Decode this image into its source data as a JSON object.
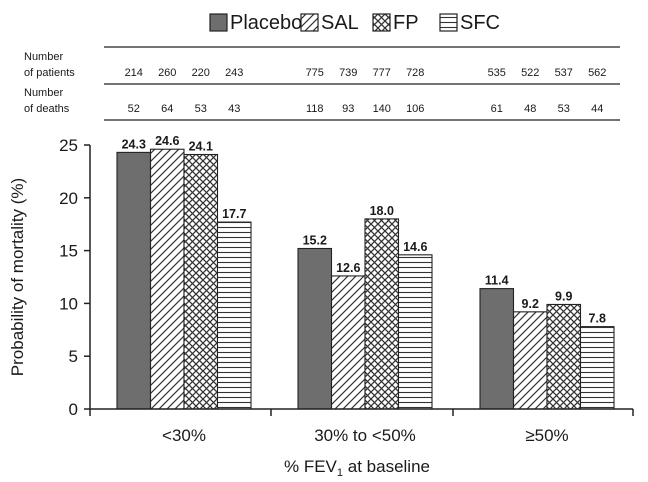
{
  "chart_data": {
    "type": "bar",
    "title": "",
    "xlabel": "% FEV",
    "xlabel_subscript": "1",
    "xlabel_suffix": " at baseline",
    "ylabel": "Probability of mortality (%)",
    "ylim": [
      0,
      25
    ],
    "yticks": [
      "0",
      "5",
      "10",
      "15",
      "20",
      "25"
    ],
    "categories": [
      "<30%",
      "30% to <50%",
      "≥50%"
    ],
    "series": [
      {
        "name": "Placebo",
        "values": [
          24.3,
          15.2,
          11.4
        ],
        "labels": [
          "24.3",
          "15.2",
          "11.4"
        ],
        "patients": [
          "214",
          "775",
          "535"
        ],
        "deaths": [
          "52",
          "118",
          "61"
        ]
      },
      {
        "name": "SAL",
        "values": [
          24.6,
          12.6,
          9.2
        ],
        "labels": [
          "24.6",
          "12.6",
          "9.2"
        ],
        "patients": [
          "260",
          "739",
          "522"
        ],
        "deaths": [
          "64",
          "93",
          "48"
        ]
      },
      {
        "name": "FP",
        "values": [
          24.1,
          18.0,
          9.9
        ],
        "labels": [
          "24.1",
          "18.0",
          "9.9"
        ],
        "patients": [
          "220",
          "777",
          "537"
        ],
        "deaths": [
          "53",
          "140",
          "53"
        ]
      },
      {
        "name": "SFC",
        "values": [
          17.7,
          14.6,
          7.8
        ],
        "labels": [
          "17.7",
          "14.6",
          "7.8"
        ],
        "patients": [
          "243",
          "728",
          "562"
        ],
        "deaths": [
          "43",
          "106",
          "44"
        ]
      }
    ],
    "table_rows": [
      {
        "label_line1": "Number",
        "label_line2": "of patients",
        "field": "patients"
      },
      {
        "label_line1": "Number",
        "label_line2": "of deaths",
        "field": "deaths"
      }
    ],
    "legend_position": "top"
  },
  "colors": {
    "placebo_fill": "#6e6e6e",
    "bar_stroke": "#222222",
    "pattern_stroke": "#333333",
    "axis": "#222222",
    "text": "#1a1a1a"
  }
}
